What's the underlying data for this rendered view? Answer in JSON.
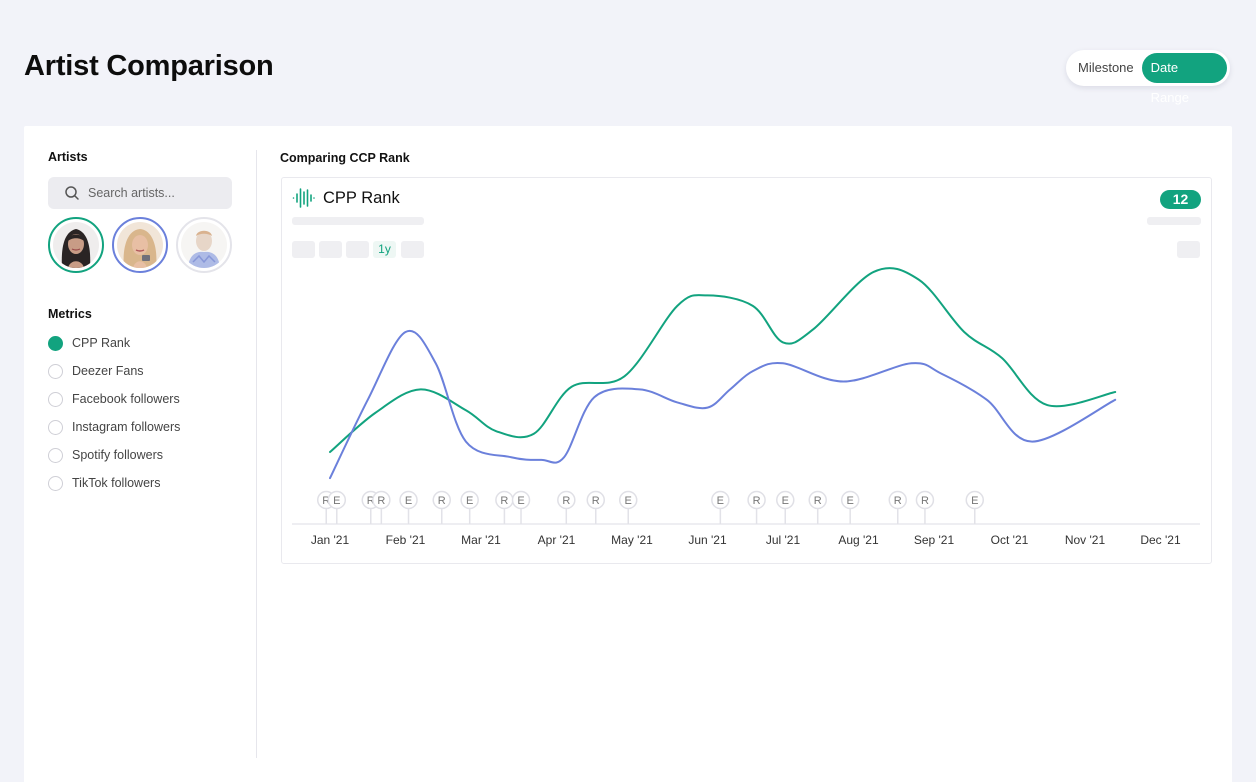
{
  "page": {
    "title": "Artist Comparison"
  },
  "mode_toggle": {
    "milestone_label": "Milestone",
    "date_range_label": "Date Range",
    "active": "Date Range"
  },
  "sidebar": {
    "artists_title": "Artists",
    "search": {
      "placeholder": "Search artists...",
      "value": ""
    },
    "artists": [
      {
        "selected": true,
        "ring_color": "#12a37f"
      },
      {
        "selected": true,
        "ring_color": "#6b80db"
      },
      {
        "selected": false,
        "ring_color": "#e4e4ea"
      }
    ],
    "metrics_title": "Metrics",
    "metrics": [
      {
        "label": "CPP Rank",
        "selected": true
      },
      {
        "label": "Deezer Fans",
        "selected": false
      },
      {
        "label": "Facebook followers",
        "selected": false
      },
      {
        "label": "Instagram followers",
        "selected": false
      },
      {
        "label": "Spotify followers",
        "selected": false
      },
      {
        "label": "TikTok followers",
        "selected": false
      }
    ]
  },
  "chart_panel": {
    "heading": "Comparing CCP Rank",
    "metric_name": "CPP Rank",
    "metric_icon": "waveform-icon",
    "rank_value": "12",
    "active_range": "1y"
  },
  "colors": {
    "accent": "#12a37f",
    "series_green": "#12a37f",
    "series_blue": "#6b80db"
  },
  "chart_data": {
    "type": "line",
    "title": "CPP Rank",
    "x": [
      "Jan '21",
      "Feb '21",
      "Mar '21",
      "Apr '21",
      "May '21",
      "Jun '21",
      "Jul '21",
      "Aug '21",
      "Sep '21",
      "Oct '21",
      "Nov '21",
      "Dec '21"
    ],
    "ylim": [
      0,
      100
    ],
    "grid": false,
    "series": [
      {
        "color": "#12a37f",
        "points": [
          [
            0.0,
            18
          ],
          [
            0.6,
            33
          ],
          [
            1.2,
            42
          ],
          [
            1.8,
            34
          ],
          [
            2.2,
            26
          ],
          [
            2.7,
            25
          ],
          [
            3.2,
            43
          ],
          [
            3.9,
            47
          ],
          [
            4.6,
            74
          ],
          [
            5.0,
            78
          ],
          [
            5.6,
            74
          ],
          [
            6.0,
            60
          ],
          [
            6.4,
            65
          ],
          [
            7.2,
            87
          ],
          [
            7.8,
            84
          ],
          [
            8.4,
            64
          ],
          [
            8.9,
            54
          ],
          [
            9.5,
            36
          ],
          [
            10.4,
            41
          ]
        ]
      },
      {
        "color": "#6b80db",
        "points": [
          [
            0.0,
            8
          ],
          [
            0.5,
            38
          ],
          [
            1.0,
            64
          ],
          [
            1.4,
            52
          ],
          [
            1.8,
            22
          ],
          [
            2.4,
            16
          ],
          [
            2.8,
            15
          ],
          [
            3.1,
            16
          ],
          [
            3.5,
            39
          ],
          [
            4.1,
            42
          ],
          [
            4.6,
            37
          ],
          [
            5.0,
            35
          ],
          [
            5.3,
            42
          ],
          [
            5.6,
            49
          ],
          [
            6.0,
            52
          ],
          [
            6.8,
            45
          ],
          [
            7.7,
            52
          ],
          [
            8.1,
            48
          ],
          [
            8.7,
            38
          ],
          [
            9.3,
            22
          ],
          [
            10.4,
            38
          ]
        ]
      }
    ],
    "event_markers": [
      {
        "label": "R",
        "x": -0.05
      },
      {
        "label": "E",
        "x": 0.09
      },
      {
        "label": "R",
        "x": 0.54
      },
      {
        "label": "R",
        "x": 0.68
      },
      {
        "label": "E",
        "x": 1.04
      },
      {
        "label": "R",
        "x": 1.48
      },
      {
        "label": "E",
        "x": 1.85
      },
      {
        "label": "R",
        "x": 2.31
      },
      {
        "label": "E",
        "x": 2.53
      },
      {
        "label": "R",
        "x": 3.13
      },
      {
        "label": "R",
        "x": 3.52
      },
      {
        "label": "E",
        "x": 3.95
      },
      {
        "label": "E",
        "x": 5.17
      },
      {
        "label": "R",
        "x": 5.65
      },
      {
        "label": "E",
        "x": 6.03
      },
      {
        "label": "R",
        "x": 6.46
      },
      {
        "label": "E",
        "x": 6.89
      },
      {
        "label": "R",
        "x": 7.52
      },
      {
        "label": "R",
        "x": 7.88
      },
      {
        "label": "E",
        "x": 8.54
      }
    ]
  }
}
